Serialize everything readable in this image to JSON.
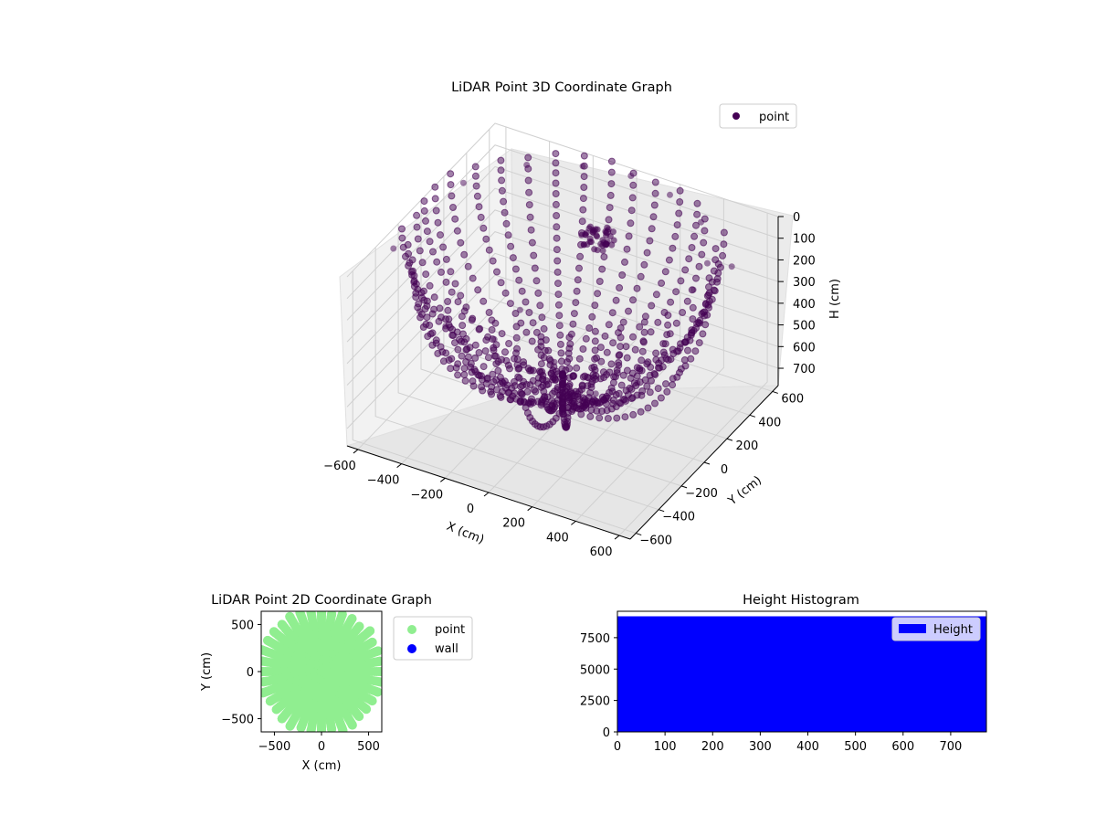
{
  "colors": {
    "point3d": "#440154",
    "point2d": "#90ee90",
    "wall": "#0000ff",
    "histogram": "#0000ff",
    "pane": "#f2f2f2",
    "grid": "#d9d9d9"
  },
  "chart_data": [
    {
      "type": "scatter",
      "title": "LiDAR Point 3D Coordinate Graph",
      "xlabel": "X (cm)",
      "ylabel": "Y (cm)",
      "zlabel": "H (cm)",
      "xticks": [
        "−600",
        "−400",
        "−200",
        "0",
        "200",
        "400",
        "600"
      ],
      "yticks": [
        "−600",
        "−400",
        "−200",
        "0",
        "200",
        "400",
        "600"
      ],
      "zticks": [
        "0",
        "100",
        "200",
        "300",
        "400",
        "500",
        "600",
        "700"
      ],
      "xlim": [
        -650,
        650
      ],
      "ylim": [
        -650,
        650
      ],
      "zlim": [
        780,
        0
      ],
      "z_axis_inverted": true,
      "legend": {
        "position": "top-right",
        "entries": [
          "point"
        ]
      },
      "series": [
        {
          "name": "point",
          "description_hidden": true,
          "shape": "hemispherical dome of scan arcs",
          "points": [
            [
              0,
              600,
              0
            ],
            [
              200,
              560,
              0
            ],
            [
              -200,
              560,
              0
            ],
            [
              400,
              450,
              0
            ],
            [
              -400,
              450,
              0
            ],
            [
              560,
              200,
              0
            ],
            [
              -560,
              200,
              0
            ],
            [
              600,
              0,
              0
            ],
            [
              0,
              0,
              760
            ],
            [
              100,
              100,
              700
            ],
            [
              -100,
              -100,
              700
            ],
            [
              300,
              -200,
              500
            ],
            [
              -300,
              200,
              500
            ],
            [
              500,
              -300,
              300
            ],
            [
              -500,
              -300,
              300
            ],
            [
              620,
              300,
              50
            ],
            [
              -620,
              -300,
              50
            ],
            [
              0,
              -600,
              100
            ],
            [
              250,
              -550,
              150
            ],
            [
              -250,
              -550,
              150
            ]
          ]
        }
      ]
    },
    {
      "type": "scatter",
      "title": "LiDAR Point 2D Coordinate Graph",
      "xlabel": "X (cm)",
      "ylabel": "Y (cm)",
      "xticks": [
        "−500",
        "0",
        "500"
      ],
      "yticks": [
        "−500",
        "0",
        "500"
      ],
      "xlim": [
        -640,
        640
      ],
      "ylim": [
        -640,
        640
      ],
      "legend": {
        "position": "outside-right",
        "entries": [
          "point",
          "wall"
        ]
      },
      "series": [
        {
          "name": "point",
          "description_hidden": true
        },
        {
          "name": "wall",
          "points": []
        }
      ]
    },
    {
      "type": "bar",
      "title": "Height Histogram",
      "xticks": [
        "0",
        "100",
        "200",
        "300",
        "400",
        "500",
        "600",
        "700"
      ],
      "yticks": [
        "0",
        "2500",
        "5000",
        "7500"
      ],
      "xlim": [
        0,
        775
      ],
      "ylim": [
        0,
        9600
      ],
      "legend": {
        "position": "top-right",
        "entries": [
          "Height"
        ]
      },
      "series": [
        {
          "name": "Height",
          "values_approx": 9200,
          "range": [
            0,
            775
          ]
        }
      ]
    }
  ]
}
